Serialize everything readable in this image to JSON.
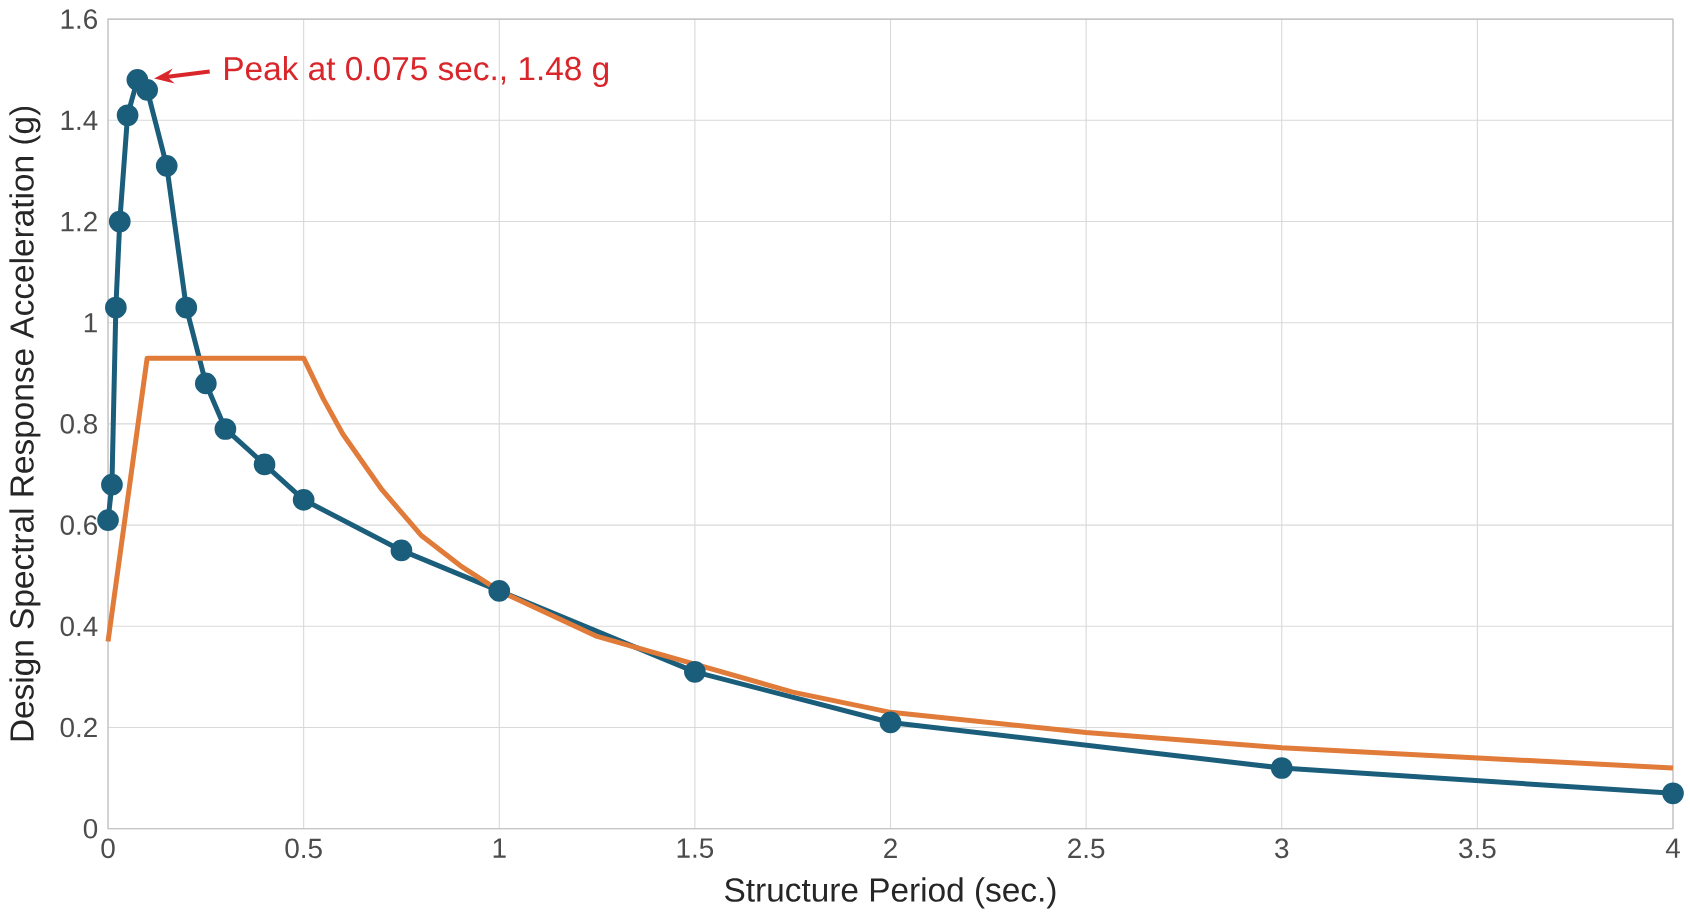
{
  "chart_data": {
    "type": "line",
    "xlabel": "Structure Period (sec.)",
    "ylabel": "Design Spectral Response Acceleration (g)",
    "xlim": [
      0,
      4
    ],
    "xticks": [
      0,
      0.5,
      1,
      1.5,
      2,
      2.5,
      3,
      3.5,
      4
    ],
    "ylim": [
      0,
      1.6
    ],
    "yticks": [
      0,
      0.2,
      0.4,
      0.6,
      0.8,
      1,
      1.2,
      1.4,
      1.6
    ],
    "grid": true,
    "series": [
      {
        "color": "#1b5e7b",
        "marker": "circle",
        "x": [
          0,
          0.01,
          0.02,
          0.03,
          0.05,
          0.075,
          0.1,
          0.15,
          0.2,
          0.25,
          0.3,
          0.4,
          0.5,
          0.75,
          1.0,
          1.5,
          2.0,
          3.0,
          4.0
        ],
        "values": [
          0.61,
          0.68,
          1.03,
          1.2,
          1.41,
          1.48,
          1.46,
          1.31,
          1.03,
          0.88,
          0.79,
          0.72,
          0.65,
          0.55,
          0.47,
          0.31,
          0.21,
          0.12,
          0.07
        ]
      },
      {
        "color": "#e07b39",
        "marker": "none",
        "x": [
          0,
          0.1,
          0.5,
          0.55,
          0.6,
          0.7,
          0.8,
          0.9,
          1.0,
          1.25,
          1.75,
          2.0,
          2.5,
          3.0,
          3.5,
          4.0
        ],
        "values": [
          0.37,
          0.93,
          0.93,
          0.85,
          0.78,
          0.67,
          0.58,
          0.52,
          0.47,
          0.38,
          0.27,
          0.23,
          0.19,
          0.16,
          0.14,
          0.12
        ]
      }
    ],
    "annotations": [
      {
        "text": "Peak at 0.075 sec., 1.48 g",
        "x": 0.075,
        "y": 1.48
      }
    ]
  }
}
